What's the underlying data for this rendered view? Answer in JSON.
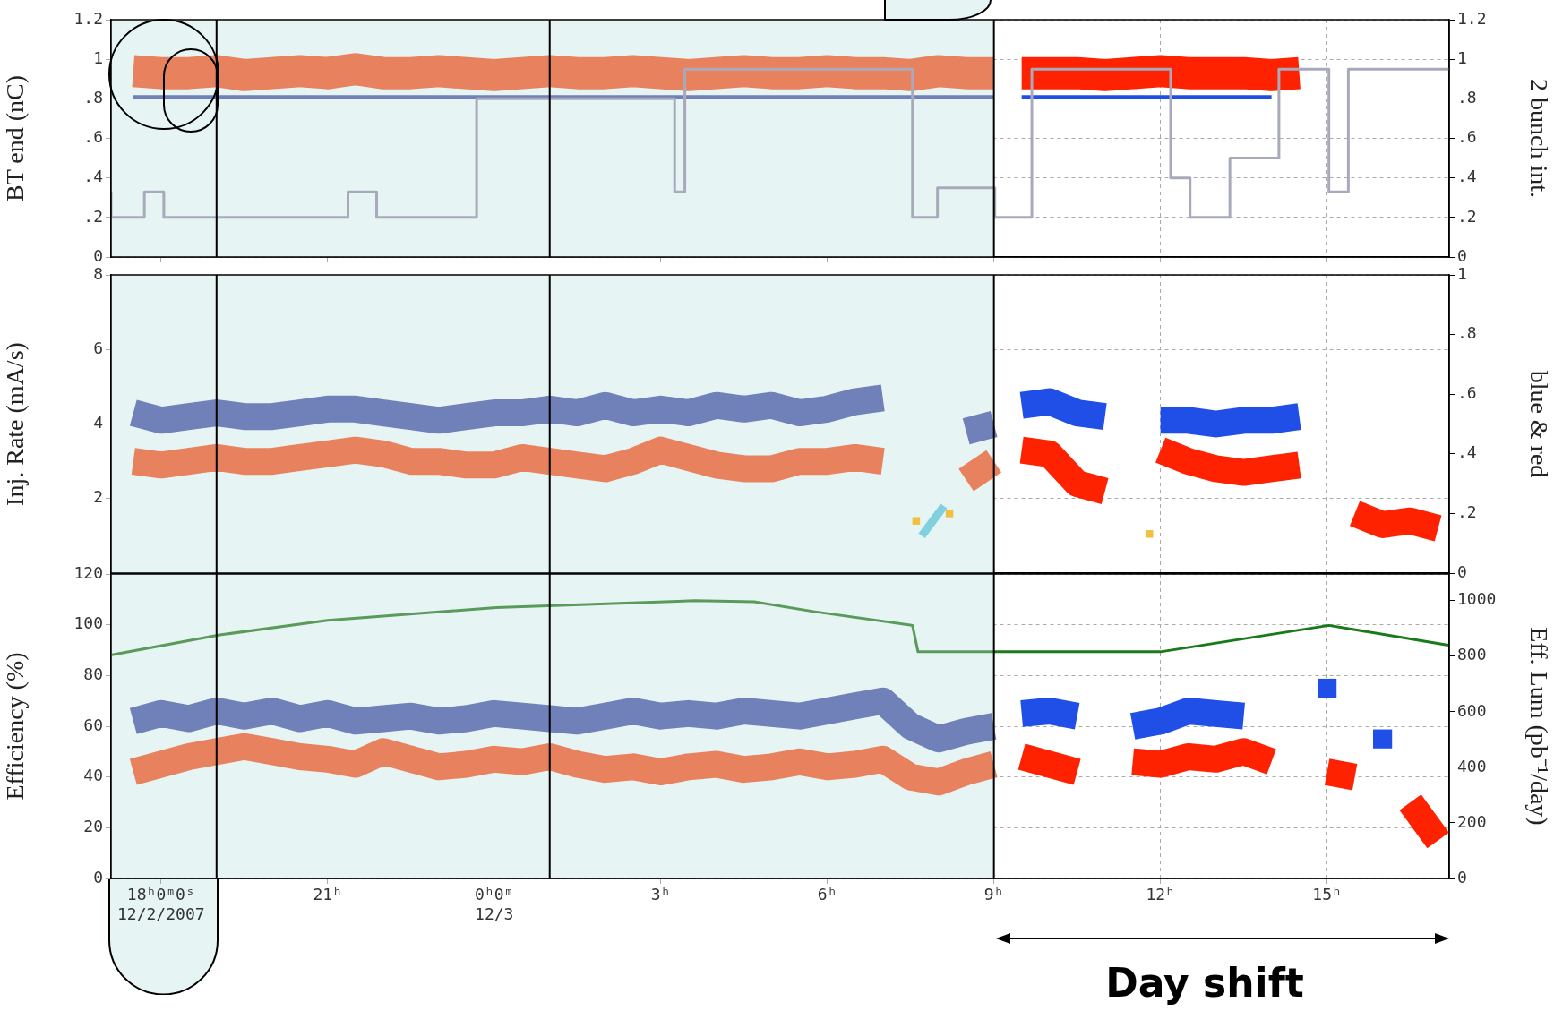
{
  "chart_data": [
    {
      "type": "line",
      "ylabel": "BT end (nC)",
      "y2label": "2 bunch int.",
      "xlim": [
        "2007-12-02T17:06",
        "2007-12-03T17:12"
      ],
      "xticks": [
        "2007-12-02T18:00",
        "2007-12-02T21:00",
        "2007-12-03T00:00",
        "2007-12-03T03:00",
        "2007-12-03T06:00",
        "2007-12-03T09:00",
        "2007-12-03T12:00",
        "2007-12-03T15:00"
      ],
      "ylim": [
        0,
        1.2
      ],
      "yticks": [
        0,
        {
          "value": 0.2,
          "label": ".2"
        },
        {
          "value": 0.4,
          "label": ".4"
        },
        {
          "value": 0.6,
          "label": ".6"
        },
        {
          "value": 0.8,
          "label": ".8"
        },
        1,
        1.2
      ],
      "y2lim": [
        0,
        1.2
      ],
      "y2ticks": [
        0,
        {
          "value": 0.2,
          "label": ".2"
        },
        {
          "value": 0.4,
          "label": ".4"
        },
        {
          "value": 0.6,
          "label": ".6"
        },
        {
          "value": 0.8,
          "label": ".8"
        },
        1,
        1.2
      ],
      "grid": true,
      "tick_labels": "y",
      "bands": [
        {
          "axis": "x",
          "from": "2007-12-02T17:06",
          "to": "2007-12-03T09:00",
          "color": "#e6f4f4"
        }
      ],
      "ref_lines": [
        {
          "axis": "x",
          "value": "2007-12-02T19:00",
          "color": "#000000"
        },
        {
          "axis": "x",
          "value": "2007-12-03T01:00",
          "color": "#000000"
        },
        {
          "axis": "x",
          "value": "2007-12-03T09:00",
          "color": "#000000"
        }
      ],
      "series": [
        {
          "color": "#e8825e",
          "x": [
            "2007-12-02T17:30",
            "2007-12-02T18:00",
            "2007-12-02T18:30",
            "2007-12-02T19:00",
            "2007-12-02T19:30",
            "2007-12-02T20:00",
            "2007-12-02T20:30",
            "2007-12-02T21:00",
            "2007-12-02T21:30",
            "2007-12-02T22:00",
            "2007-12-02T22:30",
            "2007-12-02T23:00",
            "2007-12-02T23:30",
            "2007-12-03T00:00",
            "2007-12-03T00:30",
            "2007-12-03T01:00",
            "2007-12-03T01:30",
            "2007-12-03T02:00",
            "2007-12-03T02:30",
            "2007-12-03T03:00",
            "2007-12-03T03:30",
            "2007-12-03T04:00",
            "2007-12-03T04:30",
            "2007-12-03T05:00",
            "2007-12-03T05:30",
            "2007-12-03T06:00",
            "2007-12-03T06:30",
            "2007-12-03T07:00",
            "2007-12-03T07:30",
            "2007-12-03T08:00",
            "2007-12-03T08:30",
            "2007-12-03T09:00"
          ],
          "values": [
            0.94,
            0.93,
            0.93,
            0.94,
            0.92,
            0.93,
            0.94,
            0.93,
            0.95,
            0.93,
            0.93,
            0.94,
            0.93,
            0.92,
            0.93,
            0.94,
            0.93,
            0.93,
            0.94,
            0.93,
            0.92,
            0.93,
            0.94,
            0.93,
            0.93,
            0.94,
            0.93,
            0.93,
            0.92,
            0.94,
            0.93,
            0.93
          ]
        },
        {
          "color": "#ff2200",
          "x": [
            "2007-12-03T09:30",
            "2007-12-03T10:00",
            "2007-12-03T10:30",
            "2007-12-03T11:00",
            "2007-12-03T11:30",
            "2007-12-03T12:00",
            "2007-12-03T12:30",
            "2007-12-03T13:00",
            "2007-12-03T13:30",
            "2007-12-03T14:00",
            "2007-12-03T14:30"
          ],
          "values": [
            0.93,
            0.93,
            0.93,
            0.92,
            0.93,
            0.94,
            0.93,
            0.93,
            0.93,
            0.92,
            0.93
          ]
        },
        {
          "color": "#7080b8",
          "x": [
            "2007-12-02T17:30",
            "2007-12-02T18:00",
            "2007-12-02T18:30",
            "2007-12-02T19:00",
            "2007-12-02T19:30",
            "2007-12-02T20:00",
            "2007-12-02T20:30",
            "2007-12-02T21:00",
            "2007-12-02T21:30",
            "2007-12-02T22:00",
            "2007-12-02T22:30",
            "2007-12-02T23:00",
            "2007-12-02T23:30",
            "2007-12-03T00:00",
            "2007-12-03T00:30",
            "2007-12-03T01:00",
            "2007-12-03T01:30",
            "2007-12-03T02:00",
            "2007-12-03T02:30",
            "2007-12-03T03:00",
            "2007-12-03T03:30",
            "2007-12-03T04:00",
            "2007-12-03T04:30",
            "2007-12-03T05:00",
            "2007-12-03T05:30",
            "2007-12-03T06:00",
            "2007-12-03T06:30",
            "2007-12-03T07:00",
            "2007-12-03T07:30",
            "2007-12-03T08:00",
            "2007-12-03T08:30",
            "2007-12-03T09:00"
          ],
          "values": [
            0.81,
            0.81,
            0.81,
            0.81,
            0.81,
            0.81,
            0.81,
            0.81,
            0.81,
            0.81,
            0.81,
            0.81,
            0.81,
            0.81,
            0.81,
            0.81,
            0.81,
            0.81,
            0.81,
            0.81,
            0.81,
            0.81,
            0.81,
            0.81,
            0.81,
            0.81,
            0.81,
            0.81,
            0.81,
            0.81,
            0.81,
            0.81
          ]
        },
        {
          "color": "#1f4fe6",
          "x": [
            "2007-12-03T09:30",
            "2007-12-03T10:00",
            "2007-12-03T10:30",
            "2007-12-03T11:00",
            "2007-12-03T11:30",
            "2007-12-03T12:00",
            "2007-12-03T12:30",
            "2007-12-03T13:00",
            "2007-12-03T13:30",
            "2007-12-03T14:00"
          ],
          "values": [
            0.81,
            0.81,
            0.81,
            0.81,
            0.81,
            0.81,
            0.81,
            0.81,
            0.81,
            0.81
          ]
        },
        {
          "type": "step",
          "axis": "y2",
          "color": "#a8aabb",
          "x": [
            "2007-12-02T17:06",
            "2007-12-02T17:42",
            "2007-12-02T18:03",
            "2007-12-02T21:22",
            "2007-12-02T21:53",
            "2007-12-02T23:41",
            "2007-12-03T03:15",
            "2007-12-03T03:26",
            "2007-12-03T07:32",
            "2007-12-03T07:59",
            "2007-12-03T09:01",
            "2007-12-03T09:41",
            "2007-12-03T12:11",
            "2007-12-03T12:32",
            "2007-12-03T13:15",
            "2007-12-03T14:08",
            "2007-12-03T15:02",
            "2007-12-03T15:23",
            "2007-12-03T16:49",
            "2007-12-03T17:12"
          ],
          "values": [
            0.33,
            0.2,
            0.33,
            0.2,
            0.33,
            0.2,
            0.8,
            0.33,
            0.95,
            0.2,
            0.35,
            0.2,
            0.95,
            0.4,
            0.2,
            0.5,
            0.95,
            0.33,
            0.95,
            0.95
          ]
        }
      ]
    },
    {
      "type": "line",
      "ylabel": "Inj. Rate (mA/s)",
      "y2label": "blue & red",
      "xlim": [
        "2007-12-02T17:06",
        "2007-12-03T17:12"
      ],
      "xticks": [
        "2007-12-02T18:00",
        "2007-12-02T21:00",
        "2007-12-03T00:00",
        "2007-12-03T03:00",
        "2007-12-03T06:00",
        "2007-12-03T09:00",
        "2007-12-03T12:00",
        "2007-12-03T15:00"
      ],
      "ylim": [
        0,
        8
      ],
      "yticks": [
        2,
        4,
        6,
        8
      ],
      "y2lim": [
        0,
        1
      ],
      "y2ticks": [
        0,
        {
          "value": 0.2,
          "label": ".2"
        },
        {
          "value": 0.4,
          "label": ".4"
        },
        {
          "value": 0.6,
          "label": ".6"
        },
        {
          "value": 0.8,
          "label": ".8"
        },
        1
      ],
      "grid": true,
      "tick_labels": "y",
      "bands": [
        {
          "axis": "x",
          "from": "2007-12-02T17:06",
          "to": "2007-12-03T09:00",
          "color": "#e6f4f4"
        }
      ],
      "ref_lines": [
        {
          "axis": "x",
          "value": "2007-12-02T19:00",
          "color": "#000000"
        },
        {
          "axis": "x",
          "value": "2007-12-03T01:00",
          "color": "#000000"
        },
        {
          "axis": "x",
          "value": "2007-12-03T09:00",
          "color": "#000000"
        }
      ],
      "series": [
        {
          "color": "#e8825e",
          "x": [
            "2007-12-02T17:30",
            "2007-12-02T18:00",
            "2007-12-02T18:30",
            "2007-12-02T19:00",
            "2007-12-02T19:30",
            "2007-12-02T20:00",
            "2007-12-02T20:30",
            "2007-12-02T21:00",
            "2007-12-02T21:30",
            "2007-12-02T22:00",
            "2007-12-02T22:30",
            "2007-12-02T23:00",
            "2007-12-02T23:30",
            "2007-12-03T00:00",
            "2007-12-03T00:30",
            "2007-12-03T01:00",
            "2007-12-03T01:30",
            "2007-12-03T02:00",
            "2007-12-03T02:30",
            "2007-12-03T03:00",
            "2007-12-03T03:30",
            "2007-12-03T04:00",
            "2007-12-03T04:30",
            "2007-12-03T05:00",
            "2007-12-03T05:30",
            "2007-12-03T06:00",
            "2007-12-03T06:30",
            "2007-12-03T07:00",
            "2007-12-03T07:30",
            "2007-12-03T08:00",
            "2007-12-03T08:30",
            "2007-12-03T09:00"
          ],
          "values": [
            3.0,
            2.9,
            3.0,
            3.1,
            3.0,
            3.0,
            3.1,
            3.2,
            3.3,
            3.2,
            3.0,
            3.0,
            2.9,
            2.9,
            3.1,
            3.0,
            2.9,
            2.8,
            3.0,
            3.3,
            3.1,
            2.9,
            2.8,
            2.8,
            3.0,
            3.0,
            3.1,
            3.0,
            null,
            null,
            2.5,
            3.0
          ]
        },
        {
          "color": "#7080b8",
          "x": [
            "2007-12-02T17:30",
            "2007-12-02T18:00",
            "2007-12-02T18:30",
            "2007-12-02T19:00",
            "2007-12-02T19:30",
            "2007-12-02T20:00",
            "2007-12-02T20:30",
            "2007-12-02T21:00",
            "2007-12-02T21:30",
            "2007-12-02T22:00",
            "2007-12-02T22:30",
            "2007-12-02T23:00",
            "2007-12-02T23:30",
            "2007-12-03T00:00",
            "2007-12-03T00:30",
            "2007-12-03T01:00",
            "2007-12-03T01:30",
            "2007-12-03T02:00",
            "2007-12-03T02:30",
            "2007-12-03T03:00",
            "2007-12-03T03:30",
            "2007-12-03T04:00",
            "2007-12-03T04:30",
            "2007-12-03T05:00",
            "2007-12-03T05:30",
            "2007-12-03T06:00",
            "2007-12-03T06:30",
            "2007-12-03T07:00",
            "2007-12-03T07:30",
            "2007-12-03T08:00",
            "2007-12-03T08:30",
            "2007-12-03T09:00"
          ],
          "values": [
            4.3,
            4.1,
            4.2,
            4.3,
            4.2,
            4.2,
            4.3,
            4.4,
            4.4,
            4.3,
            4.2,
            4.1,
            4.2,
            4.3,
            4.3,
            4.4,
            4.3,
            4.5,
            4.3,
            4.4,
            4.3,
            4.5,
            4.4,
            4.5,
            4.3,
            4.4,
            4.6,
            4.7,
            null,
            null,
            3.8,
            4.0
          ]
        },
        {
          "color": "#ff2200",
          "x": [
            "2007-12-03T09:30",
            "2007-12-03T10:00",
            "2007-12-03T10:30",
            "2007-12-03T11:00",
            "2007-12-03T11:30",
            "2007-12-03T12:00",
            "2007-12-03T12:30",
            "2007-12-03T13:00",
            "2007-12-03T13:30",
            "2007-12-03T14:00",
            "2007-12-03T14:30",
            "2007-12-03T15:00",
            "2007-12-03T15:30",
            "2007-12-03T16:00",
            "2007-12-03T16:30",
            "2007-12-03T17:00"
          ],
          "values": [
            3.3,
            3.2,
            2.4,
            2.2,
            null,
            3.3,
            3.0,
            2.8,
            2.7,
            2.8,
            2.9,
            null,
            1.6,
            1.3,
            1.4,
            1.2
          ]
        },
        {
          "color": "#1f4fe6",
          "x": [
            "2007-12-03T09:30",
            "2007-12-03T10:00",
            "2007-12-03T10:30",
            "2007-12-03T11:00",
            "2007-12-03T11:30",
            "2007-12-03T12:00",
            "2007-12-03T12:30",
            "2007-12-03T13:00",
            "2007-12-03T13:30",
            "2007-12-03T14:00",
            "2007-12-03T14:30"
          ],
          "values": [
            4.5,
            4.6,
            4.3,
            4.2,
            null,
            4.1,
            4.1,
            4.0,
            4.1,
            4.1,
            4.2
          ]
        },
        {
          "color": "#80d0e0",
          "x": [
            "2007-12-03T07:42",
            "2007-12-03T07:54",
            "2007-12-03T08:06"
          ],
          "values": [
            1.0,
            1.4,
            1.8
          ]
        },
        {
          "type": "scatter",
          "marker": "square",
          "color": "#f0c040",
          "x": [
            "2007-12-03T07:36",
            "2007-12-03T08:12",
            "2007-12-03T11:48"
          ],
          "values": [
            1.4,
            1.6,
            1.05
          ]
        }
      ]
    },
    {
      "type": "line",
      "ylabel": "Efficiency (%)",
      "y2label": "Eff. Lum (pb⁻¹/day)",
      "xlim": [
        "2007-12-02T17:06",
        "2007-12-03T17:12"
      ],
      "xticks": [
        {
          "value": "2007-12-02T18:00",
          "label": "18ʰ0ᵐ0ˢ\n12/2/2007"
        },
        {
          "value": "2007-12-02T21:00",
          "label": "21ʰ"
        },
        {
          "value": "2007-12-03T00:00",
          "label": "0ʰ0ᵐ\n12/3"
        },
        {
          "value": "2007-12-03T03:00",
          "label": "3ʰ"
        },
        {
          "value": "2007-12-03T06:00",
          "label": "6ʰ"
        },
        {
          "value": "2007-12-03T09:00",
          "label": "9ʰ"
        },
        {
          "value": "2007-12-03T12:00",
          "label": "12ʰ"
        },
        {
          "value": "2007-12-03T15:00",
          "label": "15ʰ"
        }
      ],
      "ylim": [
        0,
        120
      ],
      "yticks": [
        0,
        20,
        40,
        60,
        80,
        100,
        120
      ],
      "y2lim": [
        0,
        1096
      ],
      "y2ticks": [
        0,
        200,
        400,
        600,
        800,
        1000
      ],
      "grid": true,
      "bands": [
        {
          "axis": "x",
          "from": "2007-12-02T17:06",
          "to": "2007-12-03T09:00",
          "color": "#e6f4f4"
        }
      ],
      "ref_lines": [
        {
          "axis": "x",
          "value": "2007-12-02T19:00",
          "color": "#000000"
        },
        {
          "axis": "x",
          "value": "2007-12-03T01:00",
          "color": "#000000"
        },
        {
          "axis": "x",
          "value": "2007-12-03T09:00",
          "color": "#000000"
        }
      ],
      "annotations": [
        "Day shift"
      ],
      "series": [
        {
          "color": "#e8825e",
          "x": [
            "2007-12-02T17:30",
            "2007-12-02T18:00",
            "2007-12-02T18:30",
            "2007-12-02T19:00",
            "2007-12-02T19:30",
            "2007-12-02T20:00",
            "2007-12-02T20:30",
            "2007-12-02T21:00",
            "2007-12-02T21:30",
            "2007-12-02T22:00",
            "2007-12-02T22:30",
            "2007-12-02T23:00",
            "2007-12-02T23:30",
            "2007-12-03T00:00",
            "2007-12-03T00:30",
            "2007-12-03T01:00",
            "2007-12-03T01:30",
            "2007-12-03T02:00",
            "2007-12-03T02:30",
            "2007-12-03T03:00",
            "2007-12-03T03:30",
            "2007-12-03T04:00",
            "2007-12-03T04:30",
            "2007-12-03T05:00",
            "2007-12-03T05:30",
            "2007-12-03T06:00",
            "2007-12-03T06:30",
            "2007-12-03T07:00",
            "2007-12-03T07:30",
            "2007-12-03T08:00",
            "2007-12-03T08:30",
            "2007-12-03T09:00"
          ],
          "values": [
            42,
            45,
            48,
            50,
            52,
            50,
            48,
            47,
            45,
            50,
            47,
            44,
            45,
            47,
            46,
            48,
            45,
            43,
            44,
            42,
            44,
            45,
            43,
            44,
            46,
            44,
            45,
            47,
            40,
            38,
            42,
            45
          ]
        },
        {
          "color": "#7080b8",
          "x": [
            "2007-12-02T17:30",
            "2007-12-02T18:00",
            "2007-12-02T18:30",
            "2007-12-02T19:00",
            "2007-12-02T19:30",
            "2007-12-02T20:00",
            "2007-12-02T20:30",
            "2007-12-02T21:00",
            "2007-12-02T21:30",
            "2007-12-02T22:00",
            "2007-12-02T22:30",
            "2007-12-02T23:00",
            "2007-12-02T23:30",
            "2007-12-03T00:00",
            "2007-12-03T00:30",
            "2007-12-03T01:00",
            "2007-12-03T01:30",
            "2007-12-03T02:00",
            "2007-12-03T02:30",
            "2007-12-03T03:00",
            "2007-12-03T03:30",
            "2007-12-03T04:00",
            "2007-12-03T04:30",
            "2007-12-03T05:00",
            "2007-12-03T05:30",
            "2007-12-03T06:00",
            "2007-12-03T06:30",
            "2007-12-03T07:00",
            "2007-12-03T07:30",
            "2007-12-03T08:00",
            "2007-12-03T08:30",
            "2007-12-03T09:00"
          ],
          "values": [
            62,
            65,
            63,
            66,
            64,
            66,
            63,
            65,
            62,
            63,
            64,
            62,
            63,
            65,
            64,
            63,
            62,
            64,
            66,
            64,
            65,
            64,
            66,
            65,
            64,
            66,
            68,
            70,
            60,
            55,
            58,
            60
          ]
        },
        {
          "color": "#ff2200",
          "x": [
            "2007-12-03T09:30",
            "2007-12-03T10:00",
            "2007-12-03T10:30",
            "2007-12-03T11:00",
            "2007-12-03T11:30",
            "2007-12-03T12:00",
            "2007-12-03T12:30",
            "2007-12-03T13:00",
            "2007-12-03T13:30",
            "2007-12-03T14:00",
            "2007-12-03T14:30",
            "2007-12-03T15:00",
            "2007-12-03T15:30",
            "2007-12-03T16:00",
            "2007-12-03T16:30",
            "2007-12-03T17:00"
          ],
          "values": [
            48,
            45,
            42,
            null,
            46,
            45,
            48,
            47,
            50,
            46,
            null,
            42,
            40,
            null,
            30,
            15
          ]
        },
        {
          "color": "#1f4fe6",
          "x": [
            "2007-12-03T09:30",
            "2007-12-03T10:00",
            "2007-12-03T10:30",
            "2007-12-03T11:00",
            "2007-12-03T11:30",
            "2007-12-03T12:00",
            "2007-12-03T12:30",
            "2007-12-03T13:00",
            "2007-12-03T13:30",
            "2007-12-03T14:00",
            "2007-12-03T14:30",
            "2007-12-03T15:00",
            "2007-12-03T15:30",
            "2007-12-03T16:00"
          ],
          "values": [
            65,
            66,
            64,
            null,
            60,
            62,
            66,
            65,
            64,
            null,
            null,
            75,
            null,
            55
          ]
        },
        {
          "axis": "y2",
          "color": "#5a9a5a",
          "x": [
            "2007-12-02T17:07",
            "2007-12-02T19:02",
            "2007-12-02T21:00",
            "2007-12-03T00:02",
            "2007-12-03T03:37",
            "2007-12-03T04:41",
            "2007-12-03T05:45",
            "2007-12-03T07:32",
            "2007-12-03T07:38",
            "2007-12-03T09:00"
          ],
          "values": [
            805,
            876,
            929,
            975,
            1000,
            996,
            961,
            911,
            816,
            816
          ]
        },
        {
          "axis": "y2",
          "color": "#1a7a1a",
          "x": [
            "2007-12-03T09:00",
            "2007-12-03T12:00",
            "2007-12-03T15:02",
            "2007-12-03T17:11"
          ],
          "values": [
            816,
            816,
            911,
            840
          ]
        }
      ]
    }
  ]
}
